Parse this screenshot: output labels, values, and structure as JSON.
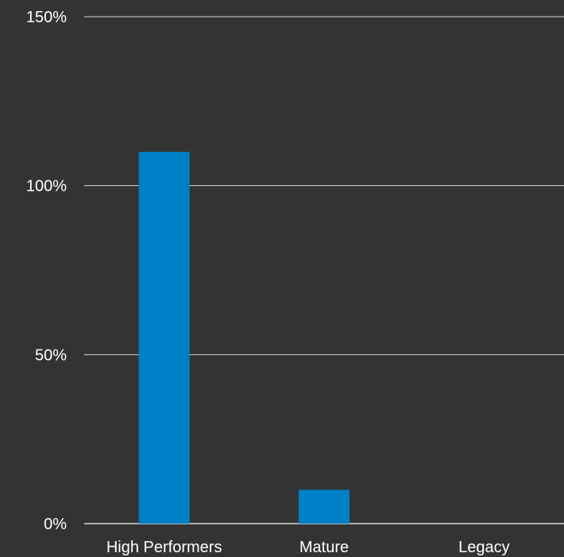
{
  "chart_data": {
    "type": "bar",
    "categories": [
      "High Performers",
      "Mature",
      "Legacy"
    ],
    "values": [
      110,
      10,
      0
    ],
    "y_ticks": [
      {
        "value": 0,
        "label": "0%"
      },
      {
        "value": 50,
        "label": "50%"
      },
      {
        "value": 100,
        "label": "100%"
      },
      {
        "value": 150,
        "label": "150%"
      }
    ],
    "ylim": [
      0,
      150
    ],
    "grid": true,
    "legend": "none",
    "title": "",
    "xlabel": "",
    "ylabel": ""
  },
  "colors": {
    "background": "#333333",
    "bar": "#0080c6",
    "grid": "#d9d9d9",
    "text": "#ffffff"
  }
}
